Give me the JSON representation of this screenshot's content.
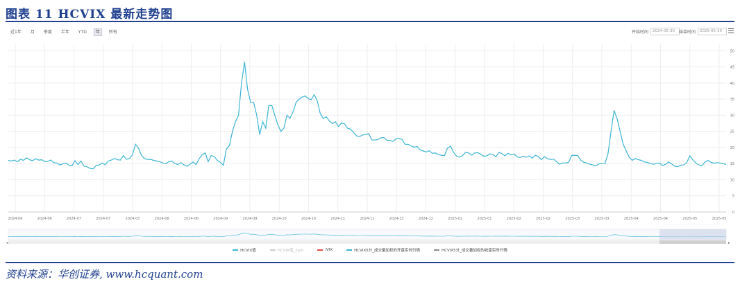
{
  "header": {
    "title": "图表 11   HCVIX 最新走势图"
  },
  "toolbar": {
    "range_buttons": [
      {
        "label": "近1年",
        "active": false
      },
      {
        "label": "月",
        "active": false
      },
      {
        "label": "季度",
        "active": false
      },
      {
        "label": "半年",
        "active": false
      },
      {
        "label": "YTD",
        "active": false
      },
      {
        "label": "年",
        "active": true
      },
      {
        "label": "所有",
        "active": false
      }
    ],
    "start_label": "开始时间",
    "start_value": "2024-05-30",
    "end_label": "结束时间",
    "end_value": "2025-05-30"
  },
  "footer": {
    "source": "资料来源：华创证券, www.hcquant.com"
  },
  "colors": {
    "line": "#3ab4d4",
    "grid": "#eeeeee",
    "accent": "#1f3f8f",
    "navigator_select": "#c9d2e6"
  },
  "chart_data": {
    "type": "line",
    "x_ticks": [
      "2024-06",
      "2024-06",
      "2024-07",
      "2024-07",
      "2024-07",
      "2024-08",
      "2024-08",
      "2024-09",
      "2024-09",
      "2024-10",
      "2024-10",
      "2024-11",
      "2024-11",
      "2024-12",
      "2024-12",
      "2025-01",
      "2025-01",
      "2025-02",
      "2025-02",
      "2025-03",
      "2025-03",
      "2025-04",
      "2025-04",
      "2025-05",
      "2025-05"
    ],
    "y_ticks": [
      0,
      5,
      10,
      15,
      20,
      25,
      30,
      35,
      40,
      45,
      50
    ],
    "ylim": [
      0,
      52
    ],
    "legend_position": "bottom",
    "series": [
      {
        "name": "HCVIX值",
        "visible": true,
        "values": [
          16,
          15.8,
          16.1,
          15.6,
          16.3,
          16,
          16.8,
          16.2,
          15.9,
          16.5,
          16.1,
          16.2,
          15.6,
          15.7,
          16.1,
          15.3,
          15.2,
          14.6,
          14.9,
          15.2,
          14.5,
          14.3,
          15.9,
          14.7,
          15.8,
          14.2,
          14,
          13.5,
          13.4,
          14.4,
          14.6,
          15.2,
          14.7,
          15.8,
          16.1,
          16.6,
          16.2,
          16.1,
          17.5,
          16.3,
          16.6,
          17.8,
          21,
          19.8,
          17.5,
          16.5,
          16.3,
          16.3,
          16,
          15.8,
          15.6,
          15.2,
          15,
          15.6,
          15.8,
          15,
          14.7,
          15.3,
          14.6,
          14.2,
          14.8,
          15.5,
          14.7,
          16.5,
          17.8,
          18.3,
          15.6,
          17.5,
          17.2,
          16,
          15.4,
          14.5,
          19.5,
          20.6,
          25,
          28,
          30,
          40,
          46.5,
          38,
          34,
          34,
          30,
          24,
          28,
          26,
          33,
          33,
          30,
          27,
          25,
          26,
          30,
          29,
          31,
          34,
          35,
          35.6,
          36,
          35.2,
          34.8,
          36.4,
          34.5,
          30.5,
          29,
          29.5,
          28.2,
          27.4,
          28,
          26.5,
          27.6,
          27.3,
          26,
          25.7,
          24.6,
          23.6,
          23.4,
          23.9,
          24,
          24.3,
          22.4,
          22.3,
          22.5,
          23,
          23.1,
          22.2,
          22.2,
          21.9,
          22.7,
          22.8,
          22.5,
          21,
          21,
          20.5,
          20.1,
          20.3,
          19.2,
          18.9,
          18.6,
          19,
          18.2,
          18.3,
          17.8,
          17.6,
          17.5,
          19.8,
          20.4,
          18.5,
          17.3,
          17,
          17.5,
          18.5,
          18.3,
          17.6,
          18.3,
          18.4,
          17.9,
          17.3,
          17.4,
          18,
          17.8,
          17.1,
          18.5,
          18.1,
          17.4,
          18.2,
          17.7,
          18,
          17.1,
          16.9,
          17.3,
          17,
          17.4,
          16.7,
          17.6,
          17.2,
          16.2,
          17.2,
          16.5,
          16.3,
          16.4,
          15.6,
          14.8,
          15.2,
          15.2,
          15.4,
          17.5,
          17.6,
          17.5,
          16,
          15.4,
          15.2,
          14.8,
          14.6,
          14.3,
          14.9,
          15,
          15,
          18,
          25,
          31.5,
          29,
          25,
          21,
          19,
          17,
          16,
          16.6,
          16.2,
          16,
          15.5,
          15.4,
          15,
          14.8,
          15,
          15.2,
          14.4,
          14.8,
          15.5,
          14.9,
          14.2,
          14,
          14.5,
          14.6,
          15.3,
          17.4,
          16.2,
          15.2,
          14.6,
          14.3,
          15.5,
          16,
          15.4,
          15.1,
          15.3,
          15.2,
          15,
          14.7
        ]
      },
      {
        "name": "HCVIX值_2pm",
        "visible": false
      },
      {
        "name": "iVIX",
        "visible": true,
        "color": "#e54848"
      },
      {
        "name": "HCVIX5分_成交量加权的开盘实时行情",
        "visible": true,
        "color": "#3ab4d4"
      },
      {
        "name": "HCVIX5分_成交量加权的收盘实时行情",
        "visible": true,
        "color": "#8a8a8a"
      }
    ]
  }
}
